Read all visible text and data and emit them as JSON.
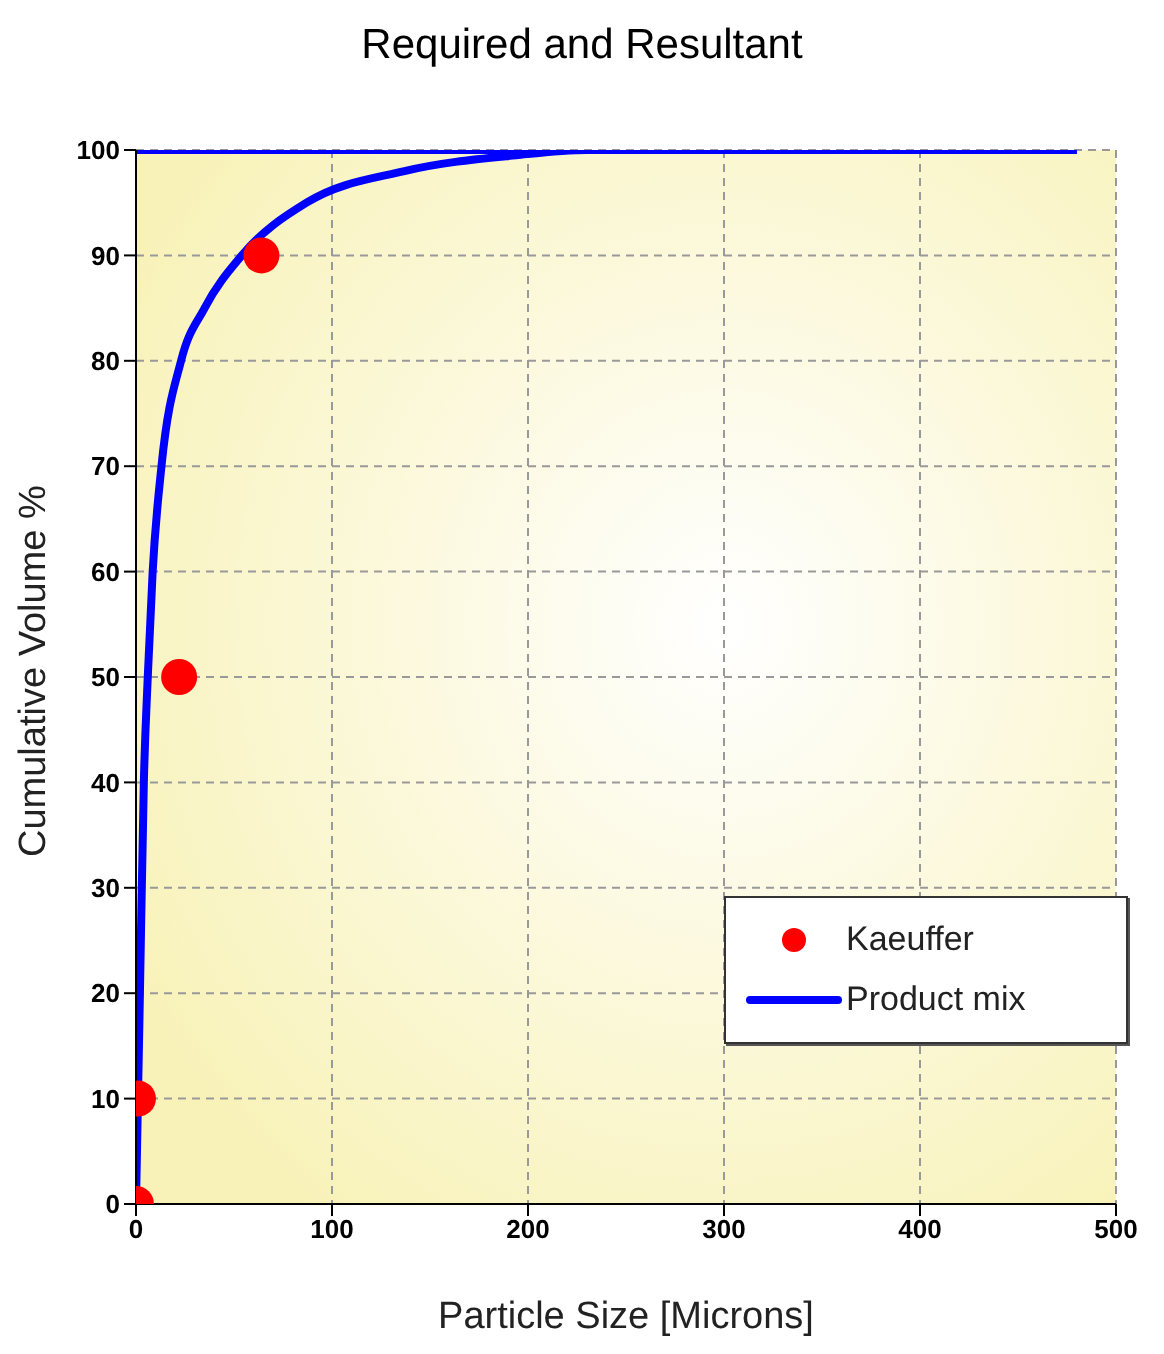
{
  "chart_data": {
    "type": "line",
    "title": "Required and Resultant",
    "xlabel": "Particle Size [Microns]",
    "ylabel": "Cumulative Volume %",
    "xlim": [
      0,
      500
    ],
    "xticks": [
      0,
      100,
      200,
      300,
      400,
      500
    ],
    "ylim": [
      0,
      100
    ],
    "yticks": [
      0,
      10,
      20,
      30,
      40,
      50,
      60,
      70,
      80,
      90,
      100
    ],
    "grid": true,
    "legend": "bottom right",
    "series": [
      {
        "name": "Kaeuffer",
        "type": "scatter",
        "color": "#ff0000",
        "marker": "circle",
        "x": [
          0,
          1,
          22,
          64
        ],
        "values": [
          0,
          10,
          50,
          90
        ]
      },
      {
        "name": "Product mix",
        "color": "#0000ff",
        "x": [
          0,
          2,
          4,
          6,
          8.5,
          13,
          23,
          35,
          54,
          87,
          137,
          194,
          230,
          480
        ],
        "values": [
          0,
          20,
          40,
          50,
          60,
          70,
          80,
          85,
          90,
          95,
          98,
          99.5,
          100,
          100
        ]
      },
      {
        "color": "#0000ff",
        "x": [
          0,
          480
        ],
        "values": [
          100,
          100
        ]
      }
    ]
  }
}
